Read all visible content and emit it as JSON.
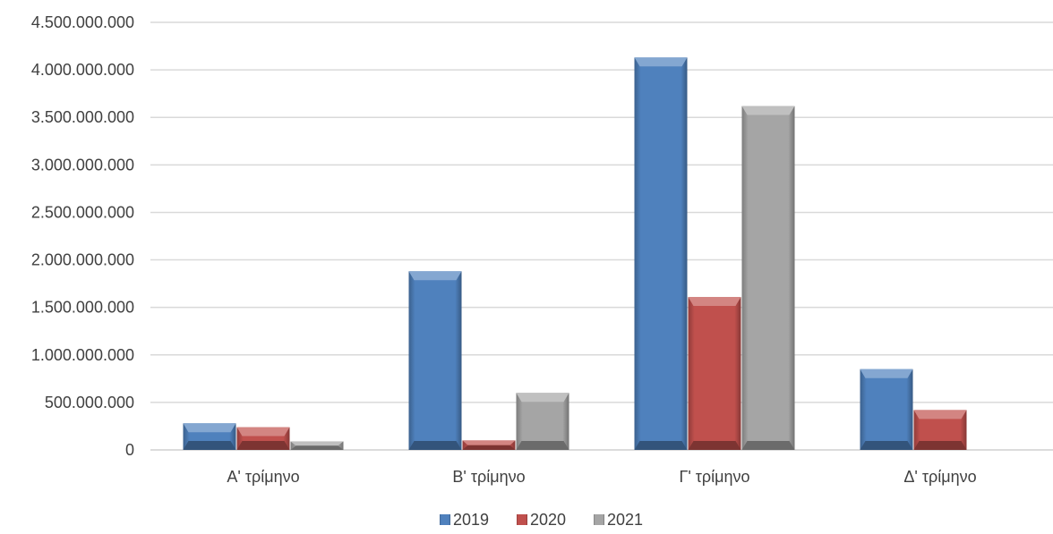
{
  "chart_data": {
    "type": "bar",
    "categories": [
      "Α' τρίμηνο",
      "Β' τρίμηνο",
      "Γ' τρίμηνο",
      "Δ' τρίμηνο"
    ],
    "series": [
      {
        "name": "2019",
        "color": "#4F81BD",
        "values": [
          280000000,
          1880000000,
          4130000000,
          850000000
        ]
      },
      {
        "name": "2020",
        "color": "#C0504D",
        "values": [
          240000000,
          100000000,
          1610000000,
          420000000
        ]
      },
      {
        "name": "2021",
        "color": "#A5A5A5",
        "values": [
          90000000,
          600000000,
          3620000000,
          0
        ]
      }
    ],
    "yticks": [
      "0",
      "500.000.000",
      "1.000.000.000",
      "1.500.000.000",
      "2.000.000.000",
      "2.500.000.000",
      "3.000.000.000",
      "3.500.000.000",
      "4.000.000.000",
      "4.500.000.000"
    ],
    "ylim": [
      0,
      4500000000
    ],
    "grid": true,
    "legend_position": "bottom",
    "title": "",
    "xlabel": "",
    "ylabel": ""
  }
}
